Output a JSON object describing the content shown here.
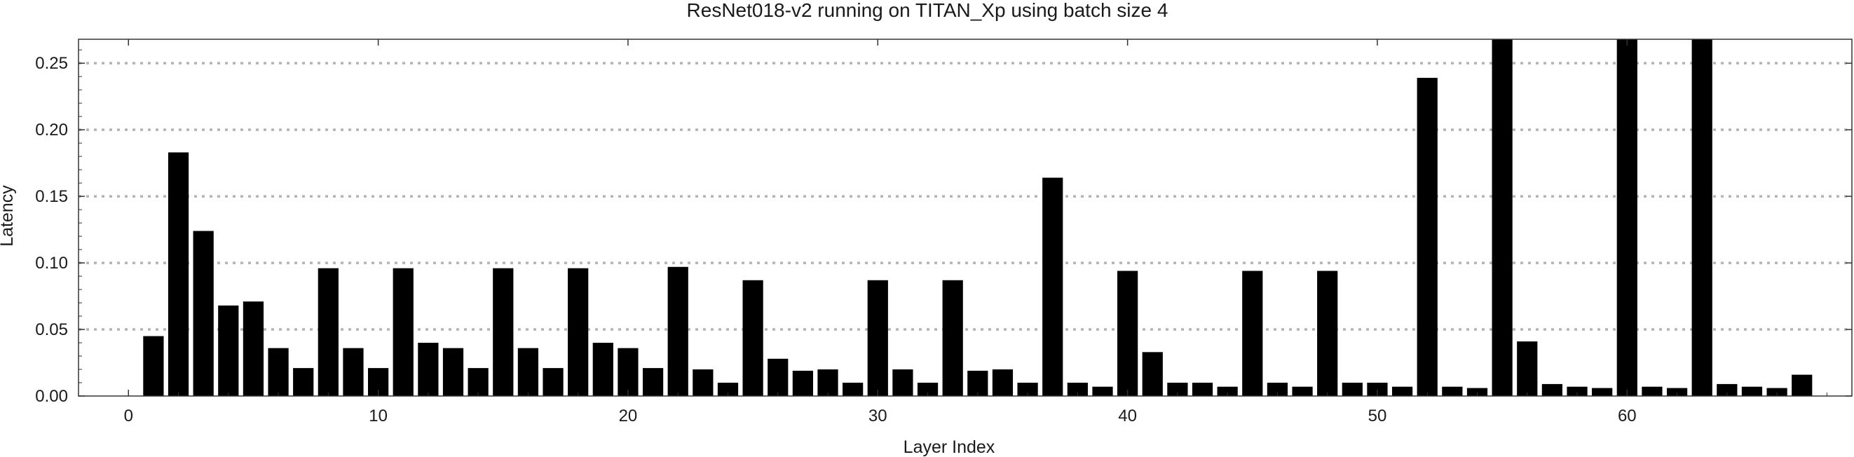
{
  "chart_data": {
    "type": "bar",
    "title": "ResNet018-v2 running on TITAN_Xp using batch size 4",
    "xlabel": "Layer Index",
    "ylabel": "Latency",
    "xlim": [
      -2,
      69
    ],
    "ylim": [
      0,
      0.268
    ],
    "xticks": [
      0,
      10,
      20,
      30,
      40,
      50,
      60
    ],
    "xtick_labels": [
      "0",
      "10",
      "20",
      "30",
      "40",
      "50",
      "60"
    ],
    "yticks": [
      0,
      0.05,
      0.1,
      0.15,
      0.2,
      0.25
    ],
    "ytick_labels": [
      "0.00",
      "0.05",
      "0.10",
      "0.15",
      "0.20",
      "0.25"
    ],
    "grid": "horizontal dotted",
    "bar_color": "#000000",
    "grid_color": "#b3b3b3",
    "x": [
      1,
      2,
      3,
      4,
      5,
      6,
      7,
      8,
      9,
      10,
      11,
      12,
      13,
      14,
      15,
      16,
      17,
      18,
      19,
      20,
      21,
      22,
      23,
      24,
      25,
      26,
      27,
      28,
      29,
      30,
      31,
      32,
      33,
      34,
      35,
      36,
      37,
      38,
      39,
      40,
      41,
      42,
      43,
      44,
      45,
      46,
      47,
      48,
      49,
      50,
      51,
      52,
      53,
      54,
      55,
      56,
      57,
      58,
      59,
      60,
      61,
      62,
      63,
      64,
      65,
      66,
      67
    ],
    "values": [
      0.045,
      0.183,
      0.124,
      0.068,
      0.071,
      0.036,
      0.021,
      0.096,
      0.036,
      0.021,
      0.096,
      0.04,
      0.036,
      0.021,
      0.096,
      0.036,
      0.021,
      0.096,
      0.04,
      0.036,
      0.021,
      0.097,
      0.02,
      0.01,
      0.087,
      0.028,
      0.019,
      0.02,
      0.01,
      0.087,
      0.02,
      0.01,
      0.087,
      0.019,
      0.02,
      0.01,
      0.164,
      0.01,
      0.007,
      0.094,
      0.033,
      0.01,
      0.01,
      0.007,
      0.094,
      0.01,
      0.007,
      0.094,
      0.01,
      0.01,
      0.007,
      0.239,
      0.007,
      0.006,
      0.268,
      0.041,
      0.009,
      0.007,
      0.006,
      0.268,
      0.007,
      0.006,
      0.268,
      0.009,
      0.007,
      0.006,
      0.016
    ]
  }
}
